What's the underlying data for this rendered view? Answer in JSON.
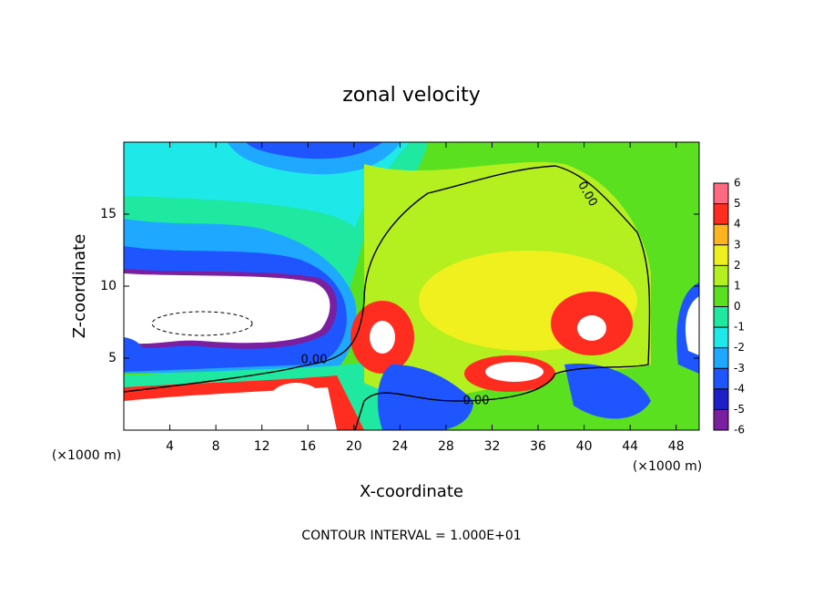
{
  "chart_data": {
    "type": "contour",
    "title": "zonal velocity",
    "x_label": "X-coordinate",
    "y_label": "Z-coordinate",
    "x_unit": "(×1000 m)",
    "footer": "CONTOUR INTERVAL = 1.000E+01",
    "xlim": [
      0,
      50
    ],
    "ylim": [
      0,
      20
    ],
    "xticks": [
      4,
      8,
      12,
      16,
      20,
      24,
      28,
      32,
      36,
      40,
      44,
      48
    ],
    "yticks": [
      5,
      10,
      15
    ],
    "contour_level": {
      "value": 0,
      "label": "0.00"
    },
    "colorbar": {
      "ticks": [
        -6,
        -5,
        -4,
        -3,
        -2,
        -1,
        0,
        1,
        2,
        3,
        4,
        5,
        6
      ],
      "colors": [
        "#7a1fa0",
        "#1f1fc8",
        "#1f55ff",
        "#1fa8ff",
        "#1fe8e8",
        "#1fe8a0",
        "#5ae01f",
        "#b4f01f",
        "#f0f01f",
        "#ffb41f",
        "#ff2d1f",
        "#ff6a80"
      ]
    }
  }
}
